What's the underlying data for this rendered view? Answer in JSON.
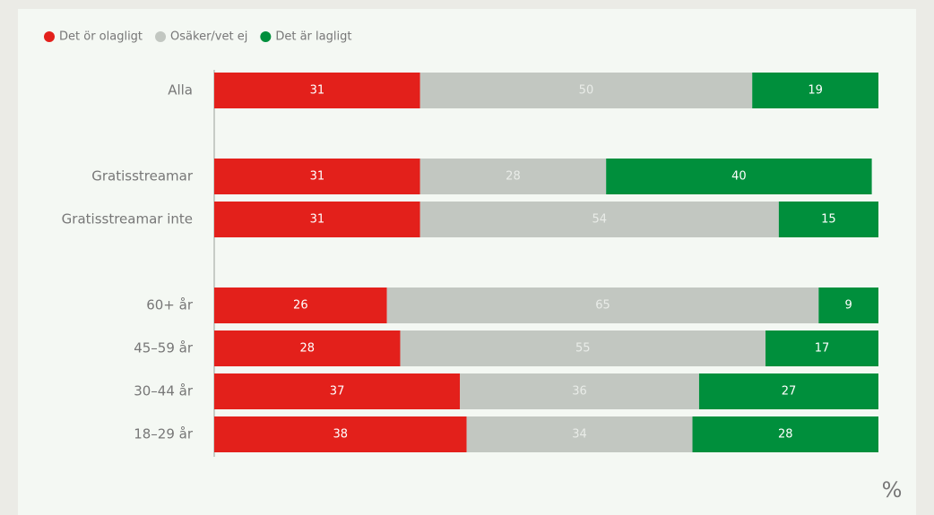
{
  "chart_data": {
    "type": "stacked_bar_horizontal",
    "categories": [
      "Alla",
      null,
      "Gratisstreamar",
      "Gratisstreamar inte",
      null,
      "60+ år",
      "45–59 år",
      "30–44 år",
      "18–29 år"
    ],
    "series": [
      {
        "name": "Det ör olagligt",
        "color": "#e3201b",
        "label_color": "#ffffff",
        "values": [
          31,
          null,
          31,
          31,
          null,
          26,
          28,
          37,
          38
        ]
      },
      {
        "name": "Osäker/vet ej",
        "color": "#c2c7c1",
        "label_color": "#e9ece8",
        "values": [
          50,
          null,
          28,
          54,
          null,
          65,
          55,
          36,
          34
        ]
      },
      {
        "name": "Det är lagligt",
        "color": "#008f3c",
        "label_color": "#ffffff",
        "values": [
          19,
          null,
          40,
          15,
          null,
          9,
          17,
          27,
          28
        ]
      }
    ],
    "xlim": [
      0,
      100
    ],
    "x_label": "%",
    "legend": "top-left"
  }
}
